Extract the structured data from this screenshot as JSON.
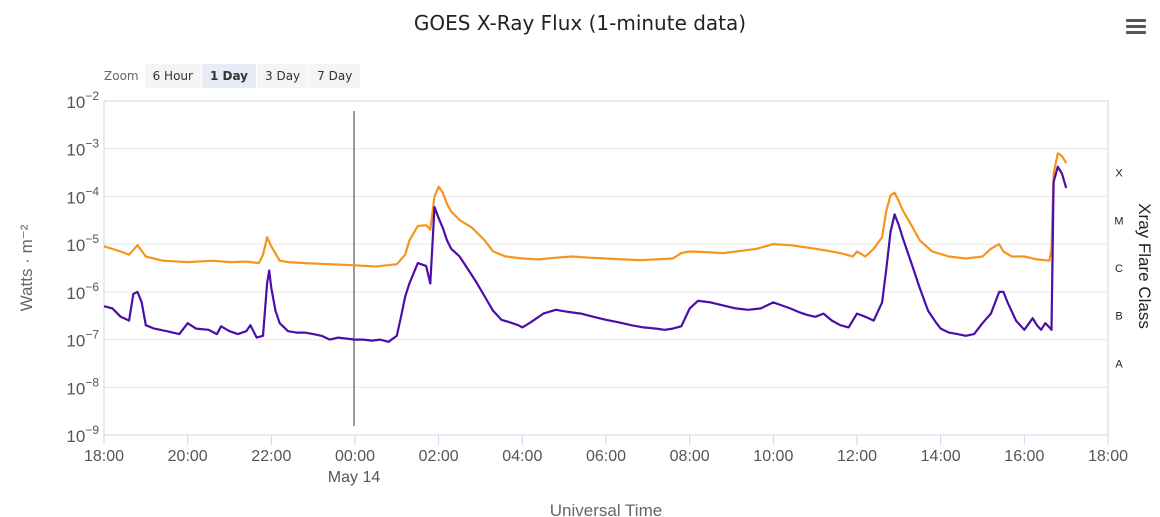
{
  "title": "GOES X-Ray Flux (1-minute data)",
  "menu_icon": "hamburger-menu-icon",
  "zoom": {
    "label": "Zoom",
    "buttons": [
      {
        "label": "6 Hour",
        "active": false
      },
      {
        "label": "1 Day",
        "active": true
      },
      {
        "label": "3 Day",
        "active": false
      },
      {
        "label": "7 Day",
        "active": false
      }
    ]
  },
  "chart_data": {
    "type": "line",
    "xlabel": "Universal Time",
    "ylabel": "Watts · m⁻²",
    "y2label": "Xray Flare Class",
    "y_scale": "log",
    "xlim": [
      -6,
      18
    ],
    "ylim_exponents": [
      -9,
      -2
    ],
    "x_ticks": [
      {
        "hour": -6,
        "label": "18:00"
      },
      {
        "hour": -4,
        "label": "20:00"
      },
      {
        "hour": -2,
        "label": "22:00"
      },
      {
        "hour": 0,
        "label": "00:00"
      },
      {
        "hour": 2,
        "label": "02:00"
      },
      {
        "hour": 4,
        "label": "04:00"
      },
      {
        "hour": 6,
        "label": "06:00"
      },
      {
        "hour": 8,
        "label": "08:00"
      },
      {
        "hour": 10,
        "label": "10:00"
      },
      {
        "hour": 12,
        "label": "12:00"
      },
      {
        "hour": 14,
        "label": "14:00"
      },
      {
        "hour": 16,
        "label": "16:00"
      },
      {
        "hour": 18,
        "label": "18:00"
      }
    ],
    "date_marker": {
      "hour": 0,
      "label": "May 14"
    },
    "y_ticks": [
      {
        "exp": -9,
        "base": "10",
        "sup": "−9"
      },
      {
        "exp": -8,
        "base": "10",
        "sup": "−8"
      },
      {
        "exp": -7,
        "base": "10",
        "sup": "−7"
      },
      {
        "exp": -6,
        "base": "10",
        "sup": "−6"
      },
      {
        "exp": -5,
        "base": "10",
        "sup": "−5"
      },
      {
        "exp": -4,
        "base": "10",
        "sup": "−4"
      },
      {
        "exp": -3,
        "base": "10",
        "sup": "−3"
      },
      {
        "exp": -2,
        "base": "10",
        "sup": "−2"
      }
    ],
    "flare_classes": [
      {
        "label": "A",
        "exp": -7.5
      },
      {
        "label": "B",
        "exp": -6.5
      },
      {
        "label": "C",
        "exp": -5.5
      },
      {
        "label": "M",
        "exp": -4.5
      },
      {
        "label": "X",
        "exp": -3.5
      }
    ],
    "grid": true,
    "series": [
      {
        "color": "#f7941d",
        "x": [
          -6,
          -5.6,
          -5.4,
          -5.2,
          -5.0,
          -4.6,
          -4.0,
          -3.4,
          -3.0,
          -2.6,
          -2.3,
          -2.2,
          -2.1,
          -2.0,
          -1.8,
          -1.6,
          -1.2,
          -0.6,
          0,
          0.5,
          1.0,
          1.2,
          1.3,
          1.5,
          1.7,
          1.8,
          1.9,
          2.0,
          2.1,
          2.2,
          2.3,
          2.5,
          2.8,
          3.1,
          3.3,
          3.6,
          4.0,
          4.4,
          4.8,
          5.2,
          5.6,
          6.0,
          6.4,
          6.8,
          7.2,
          7.6,
          7.8,
          8.0,
          8.4,
          8.8,
          9.2,
          9.6,
          10.0,
          10.4,
          10.8,
          11.2,
          11.6,
          11.9,
          12.0,
          12.2,
          12.4,
          12.6,
          12.7,
          12.8,
          12.9,
          13.0,
          13.1,
          13.3,
          13.5,
          13.8,
          14.2,
          14.6,
          15.0,
          15.2,
          15.4,
          15.5,
          15.7,
          16.0,
          16.3,
          16.6,
          16.65,
          16.7,
          16.8,
          16.9,
          17.0
        ],
        "y": [
          9e-06,
          7e-06,
          6e-06,
          9.5e-06,
          5.5e-06,
          4.5e-06,
          4.2e-06,
          4.5e-06,
          4.2e-06,
          4.3e-06,
          4e-06,
          6e-06,
          1.4e-05,
          9e-06,
          4.5e-06,
          4.2e-06,
          4e-06,
          3.8e-06,
          3.6e-06,
          3.4e-06,
          3.8e-06,
          6e-06,
          1.2e-05,
          2.4e-05,
          2.5e-05,
          2e-05,
          0.0001,
          0.00016,
          0.00012,
          7e-05,
          4.8e-05,
          3.2e-05,
          2.2e-05,
          1.2e-05,
          7e-06,
          5.5e-06,
          5e-06,
          4.8e-06,
          5.2e-06,
          5.5e-06,
          5.2e-06,
          5e-06,
          4.8e-06,
          4.6e-06,
          4.8e-06,
          5e-06,
          6.5e-06,
          7e-06,
          6.8e-06,
          6.5e-06,
          7.2e-06,
          8e-06,
          1e-05,
          9.5e-06,
          8.5e-06,
          7.5e-06,
          6.5e-06,
          5.5e-06,
          7e-06,
          5.5e-06,
          8e-06,
          1.4e-05,
          5e-05,
          0.000105,
          0.00012,
          8e-05,
          5e-05,
          2.5e-05,
          1.2e-05,
          7e-06,
          5.5e-06,
          5e-06,
          5.5e-06,
          8e-06,
          1e-05,
          7e-06,
          5.5e-06,
          5.5e-06,
          4.8e-06,
          4.5e-06,
          8e-06,
          0.0003,
          0.0008,
          0.0007,
          0.0005
        ]
      },
      {
        "color": "#4b0ea8",
        "x": [
          -6,
          -5.8,
          -5.6,
          -5.4,
          -5.3,
          -5.2,
          -5.1,
          -5.0,
          -4.8,
          -4.5,
          -4.2,
          -4.0,
          -3.8,
          -3.5,
          -3.3,
          -3.2,
          -3.0,
          -2.8,
          -2.6,
          -2.5,
          -2.35,
          -2.2,
          -2.1,
          -2.05,
          -2.0,
          -1.9,
          -1.8,
          -1.6,
          -1.4,
          -1.2,
          -1.0,
          -0.8,
          -0.6,
          -0.4,
          -0.2,
          0,
          0.2,
          0.4,
          0.6,
          0.8,
          1.0,
          1.1,
          1.2,
          1.3,
          1.5,
          1.7,
          1.8,
          1.9,
          2.0,
          2.1,
          2.2,
          2.3,
          2.5,
          2.7,
          2.9,
          3.1,
          3.3,
          3.5,
          3.7,
          3.9,
          4.0,
          4.2,
          4.5,
          4.8,
          5.1,
          5.4,
          5.7,
          6.0,
          6.3,
          6.6,
          6.9,
          7.2,
          7.4,
          7.6,
          7.8,
          8.0,
          8.2,
          8.5,
          8.8,
          9.1,
          9.4,
          9.7,
          10.0,
          10.2,
          10.4,
          10.6,
          10.8,
          11.0,
          11.2,
          11.4,
          11.6,
          11.8,
          12.0,
          12.2,
          12.4,
          12.6,
          12.7,
          12.8,
          12.9,
          13.0,
          13.1,
          13.3,
          13.5,
          13.7,
          13.9,
          14.0,
          14.2,
          14.4,
          14.6,
          14.8,
          15.0,
          15.2,
          15.4,
          15.5,
          15.6,
          15.8,
          16.0,
          16.2,
          16.3,
          16.4,
          16.5,
          16.6,
          16.65,
          16.7,
          16.8,
          16.9,
          17.0
        ],
        "y": [
          5e-07,
          4.5e-07,
          3e-07,
          2.5e-07,
          9e-07,
          1e-06,
          6e-07,
          2e-07,
          1.7e-07,
          1.5e-07,
          1.3e-07,
          2.2e-07,
          1.7e-07,
          1.6e-07,
          1.3e-07,
          1.9e-07,
          1.5e-07,
          1.3e-07,
          1.5e-07,
          2e-07,
          1.1e-07,
          1.2e-07,
          1.5e-06,
          2.8e-06,
          1.2e-06,
          4e-07,
          2.2e-07,
          1.5e-07,
          1.4e-07,
          1.4e-07,
          1.3e-07,
          1.2e-07,
          1e-07,
          1.1e-07,
          1.05e-07,
          1e-07,
          1e-07,
          9.5e-08,
          1e-07,
          9e-08,
          1.2e-07,
          3e-07,
          8e-07,
          1.5e-06,
          4e-06,
          3.5e-06,
          1.5e-06,
          6e-05,
          3.5e-05,
          2.2e-05,
          1.2e-05,
          8e-06,
          5.5e-06,
          3e-06,
          1.6e-06,
          8e-07,
          4e-07,
          2.6e-07,
          2.3e-07,
          2e-07,
          1.8e-07,
          2.3e-07,
          3.5e-07,
          4.2e-07,
          3.8e-07,
          3.5e-07,
          3e-07,
          2.6e-07,
          2.3e-07,
          2e-07,
          1.8e-07,
          1.7e-07,
          1.6e-07,
          1.7e-07,
          1.9e-07,
          4.5e-07,
          6.5e-07,
          6e-07,
          5.2e-07,
          4.5e-07,
          4.2e-07,
          4.5e-07,
          6e-07,
          5.2e-07,
          4.5e-07,
          3.8e-07,
          3.3e-07,
          3e-07,
          3.5e-07,
          2.5e-07,
          2e-07,
          1.8e-07,
          3.5e-07,
          3e-07,
          2.5e-07,
          6e-07,
          3e-06,
          1.8e-05,
          4.2e-05,
          2.5e-05,
          1.3e-05,
          4e-06,
          1.2e-06,
          4e-07,
          2.2e-07,
          1.7e-07,
          1.4e-07,
          1.3e-07,
          1.2e-07,
          1.3e-07,
          2.2e-07,
          3.5e-07,
          1e-06,
          1e-06,
          6e-07,
          2.5e-07,
          1.6e-07,
          2.8e-07,
          2e-07,
          1.6e-07,
          2.2e-07,
          1.8e-07,
          1.6e-07,
          0.0002,
          0.00042,
          0.0003,
          0.00015
        ]
      }
    ]
  }
}
